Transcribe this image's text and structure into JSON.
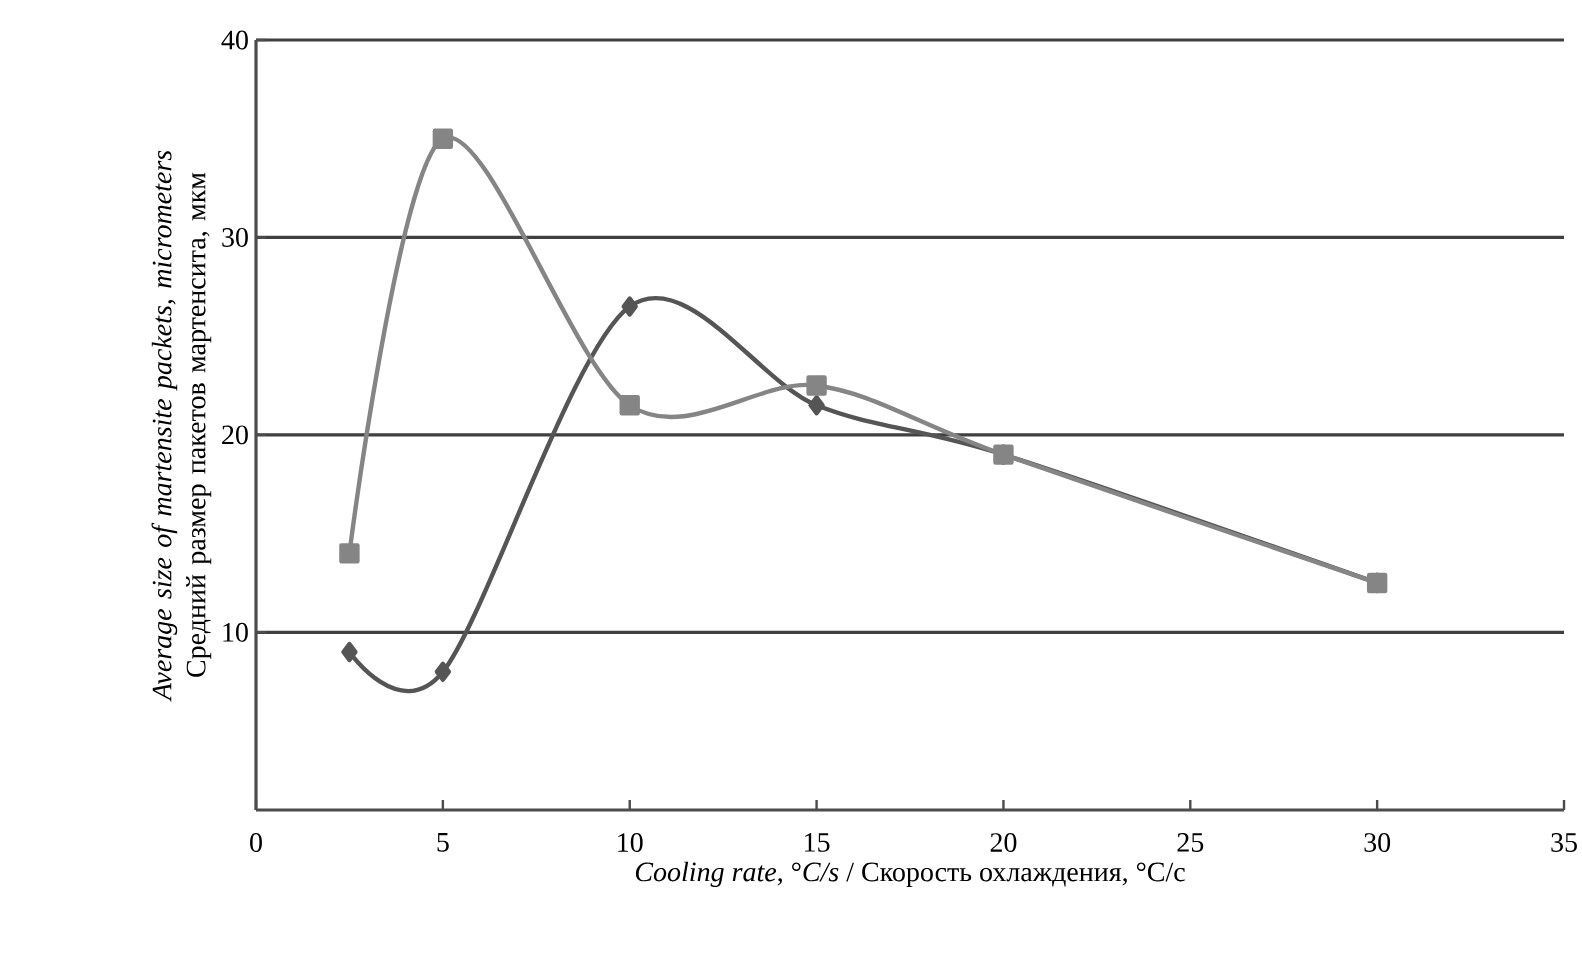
{
  "chart_data": {
    "type": "line",
    "xlabel": "*Cooling rate*, °*C/s* / Скорость охлаждения, °C/с",
    "ylabel": "*Average size of martensite packets, micrometers* Средний размер пакетов мартенсита, мкм",
    "xlim": [
      0,
      35
    ],
    "xticks": [
      0,
      5,
      10,
      15,
      20,
      25,
      30,
      35
    ],
    "ylim": [
      1,
      40
    ],
    "yticks": [
      10,
      20,
      30,
      40
    ],
    "grid": "y",
    "line_style": "solid",
    "series": [
      {
        "color": "#555555",
        "marker": "diamond",
        "x": [
          2.5,
          5,
          10,
          15,
          20,
          30
        ],
        "values": [
          9,
          8,
          26.5,
          21.5,
          19,
          12.5
        ]
      },
      {
        "color": "#858585",
        "marker": "square",
        "x": [
          2.5,
          5,
          10,
          15,
          20,
          30
        ],
        "values": [
          14,
          35,
          21.5,
          22.5,
          19,
          12.5
        ]
      }
    ]
  }
}
